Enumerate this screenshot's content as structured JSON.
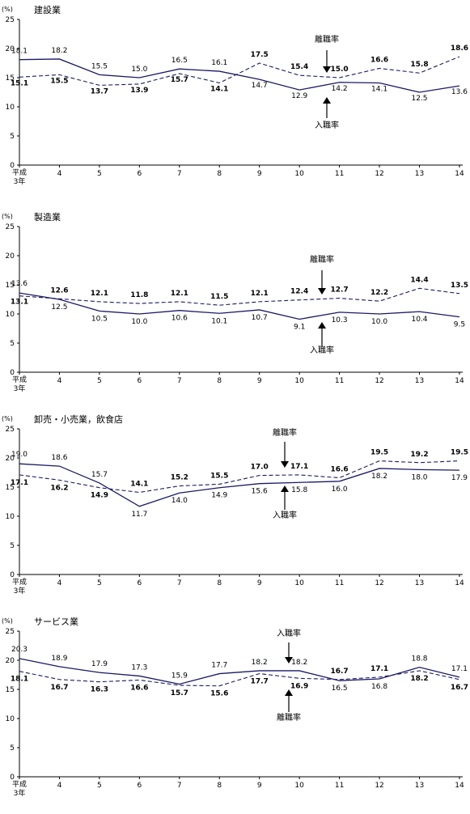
{
  "chart_data": [
    {
      "type": "line",
      "title": "建設業",
      "ylabel": "(%)",
      "ylim": [
        0,
        25
      ],
      "yticks": [
        "0",
        "5",
        "10",
        "15",
        "20",
        "25"
      ],
      "categories": [
        "平成3年",
        "4",
        "5",
        "6",
        "7",
        "8",
        "9",
        "10",
        "11",
        "12",
        "13",
        "14"
      ],
      "x_tick_first_lines": [
        "平成",
        "3年"
      ],
      "series": [
        {
          "name": "入職率",
          "style": "solid",
          "values": [
            18.1,
            18.2,
            15.5,
            15.0,
            16.5,
            16.1,
            14.7,
            12.9,
            14.2,
            14.1,
            12.5,
            13.6
          ],
          "labels": [
            "18.1",
            "18.2",
            "15.5",
            "15.0",
            "16.5",
            "16.1",
            "14.7",
            "12.9",
            "14.2",
            "14.1",
            "12.5",
            "13.6"
          ]
        },
        {
          "name": "離職率",
          "style": "dashed",
          "values": [
            15.1,
            15.5,
            13.7,
            13.9,
            15.7,
            14.1,
            17.5,
            15.4,
            15.0,
            16.6,
            15.8,
            18.6
          ],
          "labels": [
            "15.1",
            "15.5",
            "13.7",
            "13.9",
            "15.7",
            "14.1",
            "17.5",
            "15.4",
            "15.0",
            "16.6",
            "15.8",
            "18.6"
          ]
        }
      ],
      "annotations": [
        {
          "text": "離職率",
          "arrow": "down",
          "points_to": "離職率",
          "category_index": 8
        },
        {
          "text": "入職率",
          "arrow": "up",
          "points_to": "入職率",
          "category_index": 8
        }
      ]
    },
    {
      "type": "line",
      "title": "製造業",
      "ylabel": "(%)",
      "ylim": [
        0,
        25
      ],
      "yticks": [
        "0",
        "5",
        "10",
        "15",
        "20",
        "25"
      ],
      "categories": [
        "平成3年",
        "4",
        "5",
        "6",
        "7",
        "8",
        "9",
        "10",
        "11",
        "12",
        "13",
        "14"
      ],
      "x_tick_first_lines": [
        "平成",
        "3年"
      ],
      "series": [
        {
          "name": "入職率",
          "style": "solid",
          "values": [
            13.6,
            12.5,
            10.5,
            10.0,
            10.6,
            10.1,
            10.7,
            9.1,
            10.3,
            10.0,
            10.4,
            9.5
          ],
          "labels": [
            "13.6",
            "12.5",
            "10.5",
            "10.0",
            "10.6",
            "10.1",
            "10.7",
            "9.1",
            "10.3",
            "10.0",
            "10.4",
            "9.5"
          ]
        },
        {
          "name": "離職率",
          "style": "dashed",
          "values": [
            13.1,
            12.6,
            12.1,
            11.8,
            12.1,
            11.5,
            12.1,
            12.4,
            12.7,
            12.2,
            14.4,
            13.5
          ],
          "labels": [
            "13.1",
            "12.6",
            "12.1",
            "11.8",
            "12.1",
            "11.5",
            "12.1",
            "12.4",
            "12.7",
            "12.2",
            "14.4",
            "13.5"
          ]
        }
      ],
      "annotations": [
        {
          "text": "離職率",
          "arrow": "down",
          "points_to": "離職率",
          "category_index": 7
        },
        {
          "text": "入職率",
          "arrow": "up",
          "points_to": "入職率",
          "category_index": 7
        }
      ]
    },
    {
      "type": "line",
      "title": "卸売・小売業，飲食店",
      "ylabel": "(%)",
      "ylim": [
        0,
        25
      ],
      "yticks": [
        "0",
        "5",
        "10",
        "15",
        "20",
        "25"
      ],
      "categories": [
        "平成3年",
        "4",
        "5",
        "6",
        "7",
        "8",
        "9",
        "10",
        "11",
        "12",
        "13",
        "14"
      ],
      "x_tick_first_lines": [
        "平成",
        "3年"
      ],
      "series": [
        {
          "name": "入職率",
          "style": "solid",
          "values": [
            19.0,
            18.6,
            15.7,
            11.7,
            14.0,
            14.9,
            15.6,
            15.8,
            16.0,
            18.2,
            18.0,
            17.9
          ],
          "labels": [
            "19.0",
            "18.6",
            "15.7",
            "11.7",
            "14.0",
            "14.9",
            "15.6",
            "15.8",
            "16.0",
            "18.2",
            "18.0",
            "17.9"
          ]
        },
        {
          "name": "離職率",
          "style": "dashed",
          "values": [
            17.1,
            16.2,
            14.9,
            14.1,
            15.2,
            15.5,
            17.0,
            17.1,
            16.6,
            19.5,
            19.2,
            19.5
          ],
          "labels": [
            "17.1",
            "16.2",
            "14.9",
            "14.1",
            "15.2",
            "15.5",
            "17.0",
            "17.1",
            "16.6",
            "19.5",
            "19.2",
            "19.5"
          ]
        }
      ],
      "annotations": [
        {
          "text": "離職率",
          "arrow": "down",
          "points_to": "離職率",
          "category_index": 7
        },
        {
          "text": "入職率",
          "arrow": "up",
          "points_to": "入職率",
          "category_index": 7
        }
      ]
    },
    {
      "type": "line",
      "title": "サービス業",
      "ylabel": "(%)",
      "ylim": [
        0,
        25
      ],
      "yticks": [
        "0",
        "5",
        "10",
        "15",
        "20",
        "25"
      ],
      "categories": [
        "平成3年",
        "4",
        "5",
        "6",
        "7",
        "8",
        "9",
        "10",
        "11",
        "12",
        "13",
        "14"
      ],
      "x_tick_first_lines": [
        "平成",
        "3年"
      ],
      "series": [
        {
          "name": "入職率",
          "style": "solid",
          "values": [
            20.3,
            18.9,
            17.9,
            17.3,
            15.9,
            17.7,
            18.2,
            18.2,
            16.5,
            16.8,
            18.8,
            17.1
          ],
          "labels": [
            "20.3",
            "18.9",
            "17.9",
            "17.3",
            "15.9",
            "17.7",
            "18.2",
            "18.2",
            "16.5",
            "16.8",
            "18.8",
            "17.1"
          ]
        },
        {
          "name": "離職率",
          "style": "dashed",
          "values": [
            18.1,
            16.7,
            16.3,
            16.6,
            15.7,
            15.6,
            17.7,
            16.9,
            16.7,
            17.1,
            18.2,
            16.7
          ],
          "labels": [
            "18.1",
            "16.7",
            "16.3",
            "16.6",
            "15.7",
            "15.6",
            "17.7",
            "16.9",
            "16.7",
            "17.1",
            "18.2",
            "16.7"
          ]
        }
      ],
      "annotations": [
        {
          "text": "入職率",
          "arrow": "down",
          "points_to": "入職率",
          "category_index": 7
        },
        {
          "text": "離職率",
          "arrow": "up",
          "points_to": "離職率",
          "category_index": 7
        }
      ]
    }
  ]
}
